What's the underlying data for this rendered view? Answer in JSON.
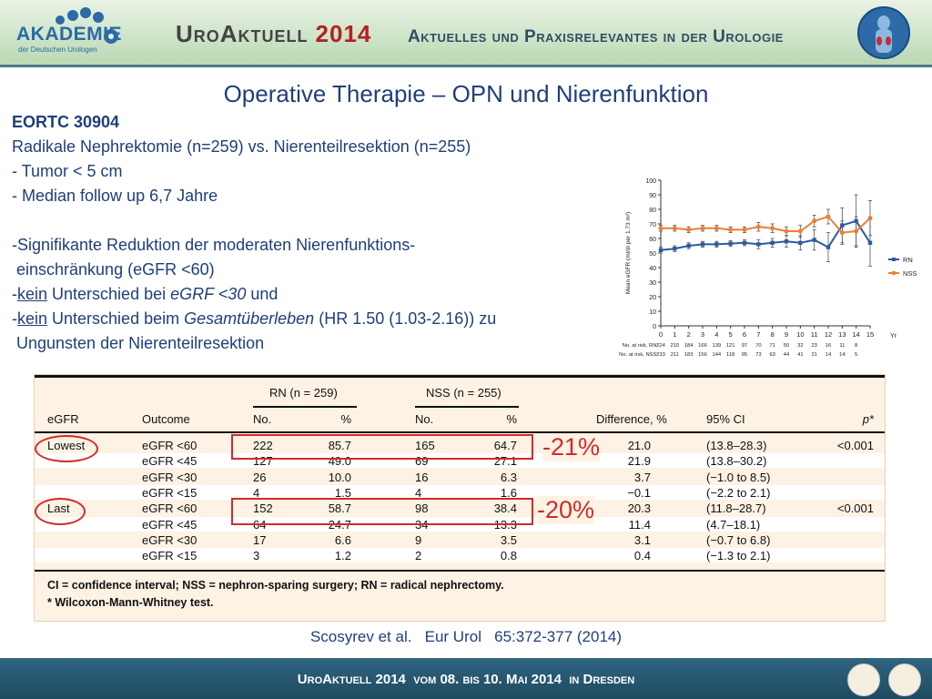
{
  "header": {
    "logo_text": "AKADEMIE",
    "logo_subtext": "der Deutschen Urologen",
    "brand": "UroAktuell",
    "year": "2014",
    "tagline": "Aktuelles und Praxisrelevantes in der Urologie"
  },
  "slide": {
    "title": "Operative Therapie – OPN und Nierenfunktion",
    "study": "EORTC 30904",
    "line1": "Radikale Nephrektomie (n=259) vs. Nierenteilresektion (n=255)",
    "line2": "- Tumor < 5 cm",
    "line3": "- Median follow up 6,7 Jahre",
    "bullet1a": "-Signifikante Reduktion der moderaten Nierenfunktions-",
    "bullet1b": " einschränkung (eGFR <60)",
    "bullet2_prefix": "-",
    "bullet2_kein": "kein",
    "bullet2_mid": " Unterschied bei ",
    "bullet2_em": "eGRF <30",
    "bullet2_end": " und",
    "bullet3_prefix": "-",
    "bullet3_kein": "kein",
    "bullet3_mid": " Unterschied beim ",
    "bullet3_em": "Gesamtüberleben",
    "bullet3_end": " (HR 1.50 (1.03-2.16)) zu",
    "bullet3b": " Ungunsten der Nierenteilresektion"
  },
  "annotations": {
    "diff_lowest": "-21%",
    "diff_last": "-20%"
  },
  "citation": "Scosyrev et al.   Eur Urol   65:372-377 (2014)",
  "footer": "UroAktuell 2014  vom 08. bis 10. Mai 2014  in Dresden",
  "colors": {
    "title_blue": "#1f3f7a",
    "rn_blue": "#2c5aa0",
    "nss_orange": "#e8803a",
    "highlight_red": "#d62828",
    "table_bg": "#fdf2e4"
  },
  "chart_data": [
    {
      "type": "line",
      "x": [
        0,
        1,
        2,
        3,
        4,
        5,
        6,
        7,
        8,
        9,
        10,
        11,
        12,
        13,
        14,
        15
      ],
      "xlabel": "Yr",
      "ylabel": "Mean eGFR (ml/dl per 1.73 m²)",
      "ylim": [
        0,
        100
      ],
      "yticks": [
        0,
        10,
        20,
        30,
        40,
        50,
        60,
        70,
        80,
        90,
        100
      ],
      "grid": false,
      "legend": "right",
      "series": [
        {
          "name": "RN",
          "color": "#2c5aa0",
          "values": [
            52,
            53,
            55,
            56,
            56,
            56.5,
            57,
            56,
            57,
            58,
            57,
            59,
            54,
            69,
            72,
            57
          ],
          "err": [
            2,
            2,
            2,
            2,
            2,
            2,
            2,
            3,
            3,
            4,
            5,
            7,
            10,
            12,
            18,
            16
          ]
        },
        {
          "name": "NSS",
          "color": "#e8803a",
          "values": [
            67,
            67,
            66,
            67,
            67,
            66,
            66,
            68,
            67,
            65,
            65,
            72,
            75,
            64,
            65,
            74
          ],
          "err": [
            2,
            2,
            2,
            2,
            2,
            2,
            2,
            3,
            3,
            3,
            4,
            4,
            5,
            8,
            10,
            12
          ]
        }
      ],
      "at_risk": {
        "rn_label": "No. at risk, RN:",
        "nss_label": "No. at risk, NSS:",
        "rn": [
          "224",
          "210",
          "184",
          "166",
          "139",
          "121",
          "97",
          "70",
          "71",
          "50",
          "32",
          "23",
          "16",
          "11",
          "8"
        ],
        "nss": [
          "233",
          "211",
          "183",
          "156",
          "144",
          "118",
          "95",
          "73",
          "63",
          "44",
          "41",
          "21",
          "14",
          "14",
          "5"
        ]
      }
    },
    {
      "type": "table",
      "group_headers": [
        "RN (n = 259)",
        "NSS (n = 255)"
      ],
      "columns": [
        "eGFR",
        "Outcome",
        "No.",
        "%",
        "No.",
        "%",
        "Difference, %",
        "95% CI",
        "p*"
      ],
      "rows": [
        [
          "Lowest",
          "eGFR <60",
          "222",
          "85.7",
          "165",
          "64.7",
          "21.0",
          "(13.8–28.3)",
          "<0.001"
        ],
        [
          "",
          "eGFR <45",
          "127",
          "49.0",
          "69",
          "27.1",
          "21.9",
          "(13.8–30.2)",
          ""
        ],
        [
          "",
          "eGFR <30",
          "26",
          "10.0",
          "16",
          "6.3",
          "3.7",
          "(−1.0 to 8.5)",
          ""
        ],
        [
          "",
          "eGFR <15",
          "4",
          "1.5",
          "4",
          "1.6",
          "−0.1",
          "(−2.2 to 2.1)",
          ""
        ],
        [
          "Last",
          "eGFR <60",
          "152",
          "58.7",
          "98",
          "38.4",
          "20.3",
          "(11.8–28.7)",
          "<0.001"
        ],
        [
          "",
          "eGFR <45",
          "64",
          "24.7",
          "34",
          "13.3",
          "11.4",
          "(4.7–18.1)",
          ""
        ],
        [
          "",
          "eGFR <30",
          "17",
          "6.6",
          "9",
          "3.5",
          "3.1",
          "(−0.7 to 6.8)",
          ""
        ],
        [
          "",
          "eGFR <15",
          "3",
          "1.2",
          "2",
          "0.8",
          "0.4",
          "(−1.3 to 2.1)",
          ""
        ]
      ],
      "footnotes": [
        "CI = confidence interval; NSS = nephron-sparing surgery; RN = radical nephrectomy.",
        "Wilcoxon-Mann-Whitney test."
      ]
    }
  ]
}
